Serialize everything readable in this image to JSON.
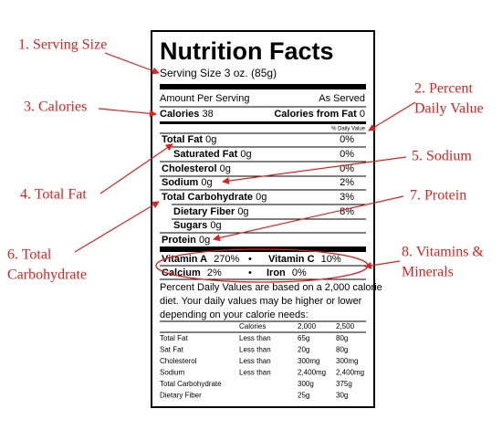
{
  "annotations": [
    {
      "lines": [
        "1. Serving Size"
      ]
    },
    {
      "lines": [
        "3. Calories"
      ]
    },
    {
      "lines": [
        "2. Percent",
        "Daily Value"
      ]
    },
    {
      "lines": [
        "5. Sodium"
      ]
    },
    {
      "lines": [
        "4. Total Fat"
      ]
    },
    {
      "lines": [
        "7. Protein"
      ]
    },
    {
      "lines": [
        "6. Total",
        "Carbohydrate"
      ]
    },
    {
      "lines": [
        "8. Vitamins &",
        "Minerals"
      ]
    }
  ],
  "label": {
    "title": "Nutrition Facts",
    "serving_size": "Serving Size 3 oz. (85g)",
    "amount_per_serving": "Amount Per Serving",
    "as_served": "As Served",
    "calories": {
      "label": "Calories",
      "value": "38"
    },
    "calories_from_fat": {
      "label": "Calories from Fat",
      "value": "0"
    },
    "daily_value_header": "% Daily Value",
    "nutrients": [
      {
        "label": "Total Fat",
        "amount": "0g",
        "dv": "0%"
      },
      {
        "label": "Saturated Fat",
        "amount": "0g",
        "dv": "0%"
      },
      {
        "label": "Cholesterol",
        "amount": "0g",
        "dv": "0%"
      },
      {
        "label": "Sodium",
        "amount": "0g",
        "dv": "2%"
      },
      {
        "label": "Total Carbohydrate",
        "amount": "0g",
        "dv": "3%"
      },
      {
        "label": "Dietary Fiber",
        "amount": "0g",
        "dv": "8%"
      },
      {
        "label": "Sugars",
        "amount": "0g"
      },
      {
        "label": "Protein",
        "amount": "0g"
      }
    ],
    "vitamins": [
      {
        "left": {
          "label": "Vitamin A",
          "value": "270%"
        },
        "separator": "•",
        "right": {
          "label": "Vitamin C",
          "value": "10%"
        }
      },
      {
        "left": {
          "label": "Calcium",
          "value": "2%"
        },
        "separator": "•",
        "right": {
          "label": "Iron",
          "value": "0%"
        }
      }
    ],
    "footnote": [
      "Percent Daily Values are based on a 2,000 calorie",
      "diet. Your daily values may be higher or lower",
      "depending on your calorie needs:"
    ],
    "footnote_table": {
      "header": {
        "calories": "Calories",
        "c2000": "2,000",
        "c2500": "2,500"
      },
      "rows": [
        {
          "nutrient": "Total Fat",
          "limit": "Less than",
          "c2000": "65g",
          "c2500": "80g"
        },
        {
          "nutrient": "Sat Fat",
          "limit": "Less than",
          "c2000": "20g",
          "c2500": "80g"
        },
        {
          "nutrient": "Cholesterol",
          "limit": "Less than",
          "c2000": "300mg",
          "c2500": "300mg"
        },
        {
          "nutrient": "Sodium",
          "limit": "Less than",
          "c2000": "2,400mg",
          "c2500": "2,400mg"
        },
        {
          "nutrient": "Total Carbohydrate",
          "c2000": "300g",
          "c2500": "375g"
        },
        {
          "nutrient": "Dietary Fiber",
          "c2000": "25g",
          "c2500": "30g"
        }
      ]
    }
  }
}
